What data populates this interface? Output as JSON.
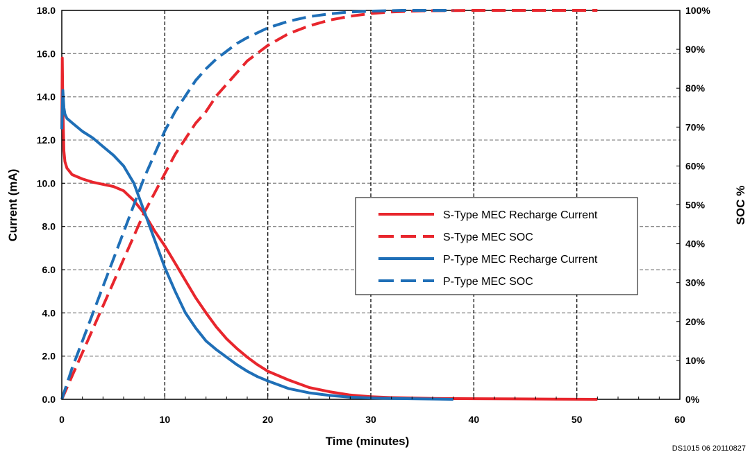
{
  "chart_data": {
    "type": "line",
    "xlabel": "Time (minutes)",
    "ylabel": "Current (mA)",
    "y2label": "SOC %",
    "xlim": [
      0,
      60
    ],
    "ylim": [
      0,
      18
    ],
    "y2lim": [
      0,
      100
    ],
    "xticks": [
      "0",
      "10",
      "20",
      "30",
      "40",
      "50",
      "60"
    ],
    "yticks": [
      "0.0",
      "2.0",
      "4.0",
      "6.0",
      "8.0",
      "10.0",
      "12.0",
      "14.0",
      "16.0",
      "18.0"
    ],
    "y2ticks": [
      "0%",
      "10%",
      "20%",
      "30%",
      "40%",
      "50%",
      "60%",
      "70%",
      "80%",
      "90%",
      "100%"
    ],
    "grid": true,
    "legend_position": "middle-right",
    "footnote": "DS1015 06 20110827",
    "series": [
      {
        "name": "S-Type MEC Recharge Current",
        "axis": "left",
        "color": "#e8262d",
        "dash": "solid",
        "x": [
          0,
          0.05,
          0.1,
          0.2,
          0.3,
          0.5,
          1,
          2,
          3,
          4,
          5,
          6,
          7,
          8,
          9,
          10,
          11,
          12,
          13,
          14,
          15,
          16,
          17,
          18,
          19,
          20,
          22,
          24,
          26,
          28,
          30,
          32,
          34,
          36,
          40,
          44,
          48,
          52
        ],
        "y": [
          12.5,
          15.8,
          13.5,
          11.5,
          11.0,
          10.7,
          10.4,
          10.2,
          10.05,
          9.95,
          9.85,
          9.65,
          9.2,
          8.6,
          7.8,
          7.1,
          6.3,
          5.5,
          4.7,
          4.0,
          3.35,
          2.8,
          2.35,
          1.95,
          1.6,
          1.3,
          0.9,
          0.55,
          0.35,
          0.2,
          0.12,
          0.08,
          0.06,
          0.04,
          0.03,
          0.02,
          0.01,
          0.0
        ]
      },
      {
        "name": "S-Type MEC SOC",
        "axis": "right",
        "color": "#e8262d",
        "dash": "dashed",
        "x": [
          0,
          0.5,
          1,
          2,
          3,
          4,
          5,
          6,
          7,
          8,
          9,
          10,
          11,
          12,
          13,
          14,
          15,
          16,
          17,
          18,
          20,
          22,
          24,
          26,
          28,
          30,
          32,
          35,
          40,
          45,
          52
        ],
        "y": [
          0,
          3,
          6,
          12,
          18,
          24,
          30,
          36,
          42,
          48,
          53,
          58,
          63,
          67,
          71,
          74,
          78,
          81,
          84,
          87,
          91,
          94,
          96,
          97.5,
          98.5,
          99.2,
          99.6,
          99.9,
          100,
          100,
          100
        ]
      },
      {
        "name": "P-Type MEC Recharge Current",
        "axis": "left",
        "color": "#1f6fb7",
        "dash": "solid",
        "x": [
          0,
          0.1,
          0.2,
          0.3,
          0.5,
          1,
          2,
          3,
          4,
          5,
          6,
          7,
          8,
          9,
          10,
          11,
          12,
          13,
          14,
          15,
          16,
          17,
          18,
          19,
          20,
          22,
          24,
          26,
          28,
          30,
          32,
          35,
          38
        ],
        "y": [
          12.5,
          14.3,
          13.5,
          13.2,
          13.0,
          12.8,
          12.4,
          12.1,
          11.7,
          11.3,
          10.8,
          10.0,
          8.7,
          7.4,
          6.1,
          5.0,
          4.0,
          3.3,
          2.7,
          2.3,
          1.95,
          1.6,
          1.3,
          1.05,
          0.85,
          0.5,
          0.3,
          0.18,
          0.1,
          0.06,
          0.04,
          0.02,
          0.0
        ]
      },
      {
        "name": "P-Type MEC SOC",
        "axis": "right",
        "color": "#1f6fb7",
        "dash": "dashed",
        "x": [
          0,
          0.5,
          1,
          2,
          3,
          4,
          5,
          6,
          7,
          8,
          9,
          10,
          11,
          12,
          13,
          14,
          15,
          16,
          17,
          18,
          20,
          22,
          24,
          26,
          28,
          30,
          33,
          38
        ],
        "y": [
          0,
          4,
          8,
          15,
          22,
          29,
          36,
          43,
          50,
          57,
          63,
          69,
          74,
          78,
          82,
          85,
          87.5,
          89.5,
          91.5,
          93,
          95.5,
          97.2,
          98.4,
          99.1,
          99.6,
          99.8,
          100,
          100
        ]
      }
    ]
  }
}
